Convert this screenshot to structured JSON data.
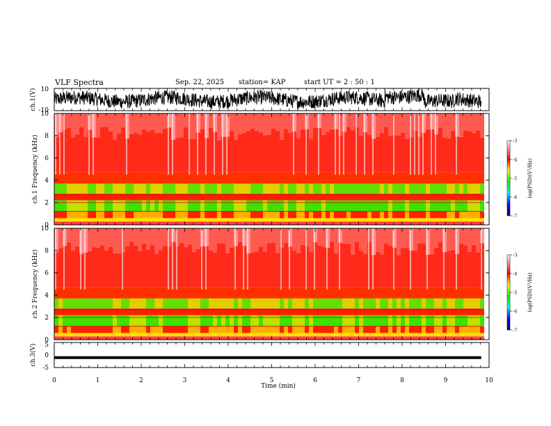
{
  "header": {
    "title": "VLF Spectra",
    "date": "Sep. 22, 2025",
    "station": "station= KAP",
    "start": "start  UT =  2 : 50 : 1"
  },
  "colors": {
    "spectro_stops": [
      "#000080",
      "#0000ff",
      "#00ffff",
      "#00ff00",
      "#ffff00",
      "#ff0000",
      "#ffffff"
    ]
  },
  "chart_data": [
    {
      "type": "line",
      "title": "ch.1(V)",
      "ylabel": "ch.1(V)",
      "ylim": [
        -10,
        10
      ],
      "yticks": [
        -10,
        10
      ],
      "xlim": [
        0,
        10
      ],
      "description_series": "broadband waveform, amplitude roughly -8 to 8 V over 0-9.8 min"
    },
    {
      "type": "heatmap",
      "ylabel": "ch.1  Frequency  (kHz)",
      "ylim": [
        0,
        10
      ],
      "yticks": [
        0,
        2,
        4,
        6,
        8,
        10
      ],
      "colorbar": {
        "label": "log(PSD)(V²/Hz)",
        "range": [
          -7,
          -3
        ],
        "ticks": [
          -7,
          -6,
          -5,
          -4,
          -3
        ]
      }
    },
    {
      "type": "heatmap",
      "ylabel": "ch.2  Frequency  (kHz)",
      "ylim": [
        0,
        10
      ],
      "yticks": [
        0,
        2,
        4,
        6,
        8,
        10
      ],
      "colorbar": {
        "label": "log(PSD)(V²/Hz)",
        "range": [
          -7,
          -3
        ],
        "ticks": [
          -7,
          -6,
          -5,
          -4,
          -3
        ]
      }
    },
    {
      "type": "line",
      "ylabel": "ch.3(V)",
      "ylim": [
        -5,
        5
      ],
      "yticks": [
        -5,
        0,
        5
      ],
      "xlim": [
        0,
        10
      ],
      "description_series": "near-constant band around -1 V over 0-9.8 min"
    }
  ],
  "x_axis": {
    "label": "Time  (min)",
    "range": [
      0,
      10
    ],
    "ticks": [
      "0",
      "1",
      "2",
      "3",
      "4",
      "5",
      "6",
      "7",
      "8",
      "9",
      "10"
    ],
    "data_end": 9.82
  },
  "labels": {
    "cb_label_1": "log(PSD)(V²/Hz)",
    "cb_label_2": "log(PSD)(V²/Hz)",
    "ytick_text": {
      "p1_top": "10",
      "p1_bot": "-10",
      "p4_top": "5",
      "p4_mid": "0",
      "p4_bot": "-5"
    }
  }
}
